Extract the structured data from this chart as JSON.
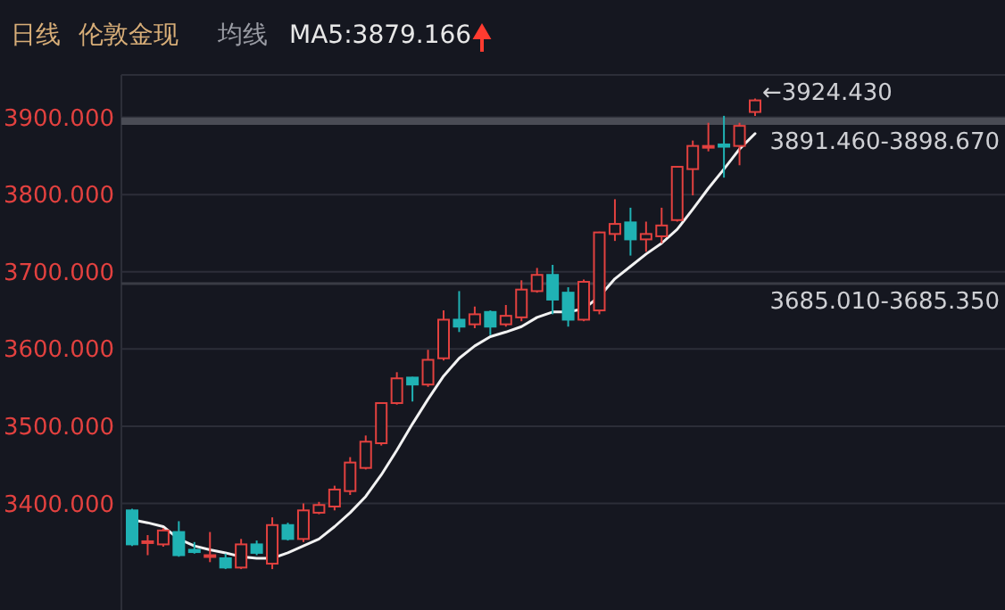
{
  "chart_data": {
    "type": "candlestick",
    "title": "日线",
    "subtitle": "伦敦金现",
    "annotations": [
      "均线",
      "MA5:3879.166",
      "←3924.430"
    ],
    "categories": [
      null,
      null,
      null,
      null,
      null,
      null,
      null,
      null,
      null,
      null,
      null,
      null,
      null,
      null,
      null,
      null,
      null,
      null,
      null,
      null,
      null,
      null,
      null,
      null,
      null,
      null,
      null,
      null,
      null,
      null,
      null,
      null,
      null,
      null,
      null,
      null,
      null,
      null,
      null,
      null,
      null
    ],
    "ohlc": [
      [
        3391,
        3393,
        3345,
        3347
      ],
      [
        3349,
        3359,
        3333,
        3351
      ],
      [
        3347,
        3368,
        3344,
        3365
      ],
      [
        3363,
        3377,
        3331,
        3333
      ],
      [
        3340,
        3350,
        3335,
        3337
      ],
      [
        3331,
        3363,
        3324,
        3333
      ],
      [
        3329,
        3335,
        3315,
        3317
      ],
      [
        3317,
        3354,
        3315,
        3347
      ],
      [
        3347,
        3352,
        3333,
        3336
      ],
      [
        3322,
        3382,
        3315,
        3372
      ],
      [
        3372,
        3375,
        3352,
        3354
      ],
      [
        3354,
        3400,
        3350,
        3391
      ],
      [
        3388,
        3402,
        3386,
        3398
      ],
      [
        3396,
        3423,
        3391,
        3418
      ],
      [
        3416,
        3460,
        3411,
        3453
      ],
      [
        3446,
        3488,
        3444,
        3480
      ],
      [
        3478,
        3531,
        3475,
        3530
      ],
      [
        3530,
        3570,
        3528,
        3562
      ],
      [
        3563,
        3564,
        3532,
        3554
      ],
      [
        3554,
        3599,
        3551,
        3586
      ],
      [
        3588,
        3650,
        3585,
        3638
      ],
      [
        3638,
        3675,
        3622,
        3629
      ],
      [
        3632,
        3655,
        3627,
        3645
      ],
      [
        3648,
        3650,
        3618,
        3629
      ],
      [
        3632,
        3657,
        3629,
        3643
      ],
      [
        3641,
        3689,
        3636,
        3677
      ],
      [
        3675,
        3705,
        3673,
        3696
      ],
      [
        3696,
        3709,
        3645,
        3664
      ],
      [
        3673,
        3680,
        3629,
        3638
      ],
      [
        3638,
        3690,
        3636,
        3687
      ],
      [
        3650,
        3752,
        3645,
        3751
      ],
      [
        3749,
        3794,
        3740,
        3762
      ],
      [
        3764,
        3783,
        3721,
        3742
      ],
      [
        3742,
        3765,
        3726,
        3749
      ],
      [
        3746,
        3783,
        3737,
        3760
      ],
      [
        3767,
        3837,
        3765,
        3836
      ],
      [
        3833,
        3870,
        3799,
        3863
      ],
      [
        3861,
        3893,
        3856,
        3863
      ],
      [
        3865,
        3902,
        3822,
        3862
      ],
      [
        3863,
        3893,
        3838,
        3889
      ],
      [
        3907,
        3924.43,
        3902,
        3922
      ]
    ],
    "colors": [
      "#20b2b4",
      "#e2413f",
      "#e2413f",
      "#20b2b4",
      "#20b2b4",
      "#e2413f",
      "#20b2b4",
      "#e2413f",
      "#20b2b4",
      "#e2413f",
      "#20b2b4",
      "#e2413f",
      "#e2413f",
      "#e2413f",
      "#e2413f",
      "#e2413f",
      "#e2413f",
      "#e2413f",
      "#20b2b4",
      "#e2413f",
      "#e2413f",
      "#20b2b4",
      "#e2413f",
      "#20b2b4",
      "#e2413f",
      "#e2413f",
      "#e2413f",
      "#20b2b4",
      "#20b2b4",
      "#e2413f",
      "#e2413f",
      "#e2413f",
      "#20b2b4",
      "#e2413f",
      "#e2413f",
      "#e2413f",
      "#e2413f",
      "#e2413f",
      "#20b2b4",
      "#e2413f",
      "#e2413f"
    ],
    "series": [
      {
        "type": "line",
        "color": "#f2f2f2",
        "values": [
          3379,
          3375,
          3370,
          3354,
          3345,
          3340,
          3336,
          3331,
          3329,
          3329,
          3336,
          3345,
          3354,
          3370,
          3388,
          3409,
          3437,
          3469,
          3503,
          3535,
          3565,
          3588,
          3604,
          3616,
          3622,
          3629,
          3641,
          3648,
          3648,
          3652,
          3668,
          3691,
          3707,
          3723,
          3737,
          3755,
          3781,
          3808,
          3833,
          3859,
          3879
        ]
      }
    ],
    "bands": [
      {
        "axis": "y",
        "from": 3891.46,
        "to": 3898.67,
        "label": "3891.460-3898.670",
        "color": "#4a4c55"
      },
      {
        "axis": "y",
        "from": 3685.01,
        "to": 3685.35,
        "label": "3685.010-3685.350",
        "color": "#3a3c45"
      }
    ],
    "ylim": [
      3262,
      3955
    ],
    "yticks": [
      {
        "value": 3400,
        "label": "3400.000"
      },
      {
        "value": 3500,
        "label": "3500.000"
      },
      {
        "value": 3600,
        "label": "3600.000"
      },
      {
        "value": 3700,
        "label": "3700.000"
      },
      {
        "value": 3800,
        "label": "3800.000"
      },
      {
        "value": 3900,
        "label": "3900.000"
      }
    ],
    "grid": "y",
    "marker": "none"
  }
}
